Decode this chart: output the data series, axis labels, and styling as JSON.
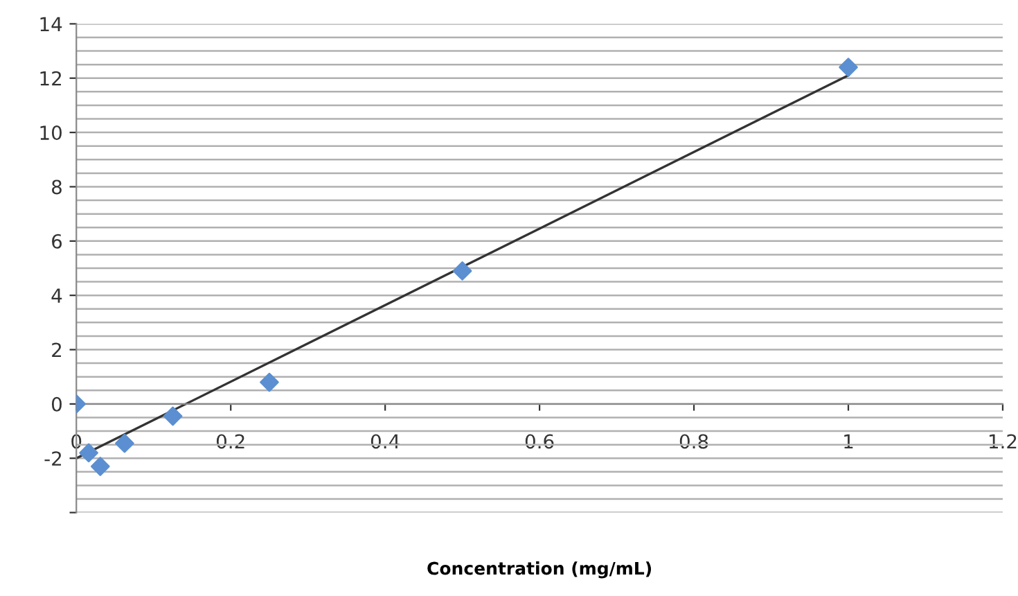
{
  "chart_data": {
    "type": "scatter",
    "xlabel": "Concentration (mg/mL)",
    "xlim": [
      0,
      1.2
    ],
    "xticks": [
      0,
      0.2,
      0.4,
      0.6,
      0.8,
      1,
      1.2
    ],
    "ylim": [
      -4,
      14
    ],
    "yticks": [
      {
        "value": -4,
        "label": null
      },
      -2,
      0,
      2,
      4,
      6,
      8,
      10,
      12,
      14
    ],
    "grid": "y",
    "marker": "diamond",
    "series": [
      {
        "color": "#5b8fd1",
        "x": [
          0,
          0.016,
          0.031,
          0.0625,
          0.125,
          0.25,
          0.5,
          1
        ],
        "values": [
          0.0,
          -1.8,
          -2.3,
          -1.45,
          -0.45,
          0.8,
          4.9,
          12.4
        ]
      },
      {
        "type": "line",
        "color": "#333333",
        "x": [
          0,
          1
        ],
        "values": [
          -2.0,
          12.1
        ],
        "marker": "none",
        "line_style": "solid"
      }
    ]
  }
}
